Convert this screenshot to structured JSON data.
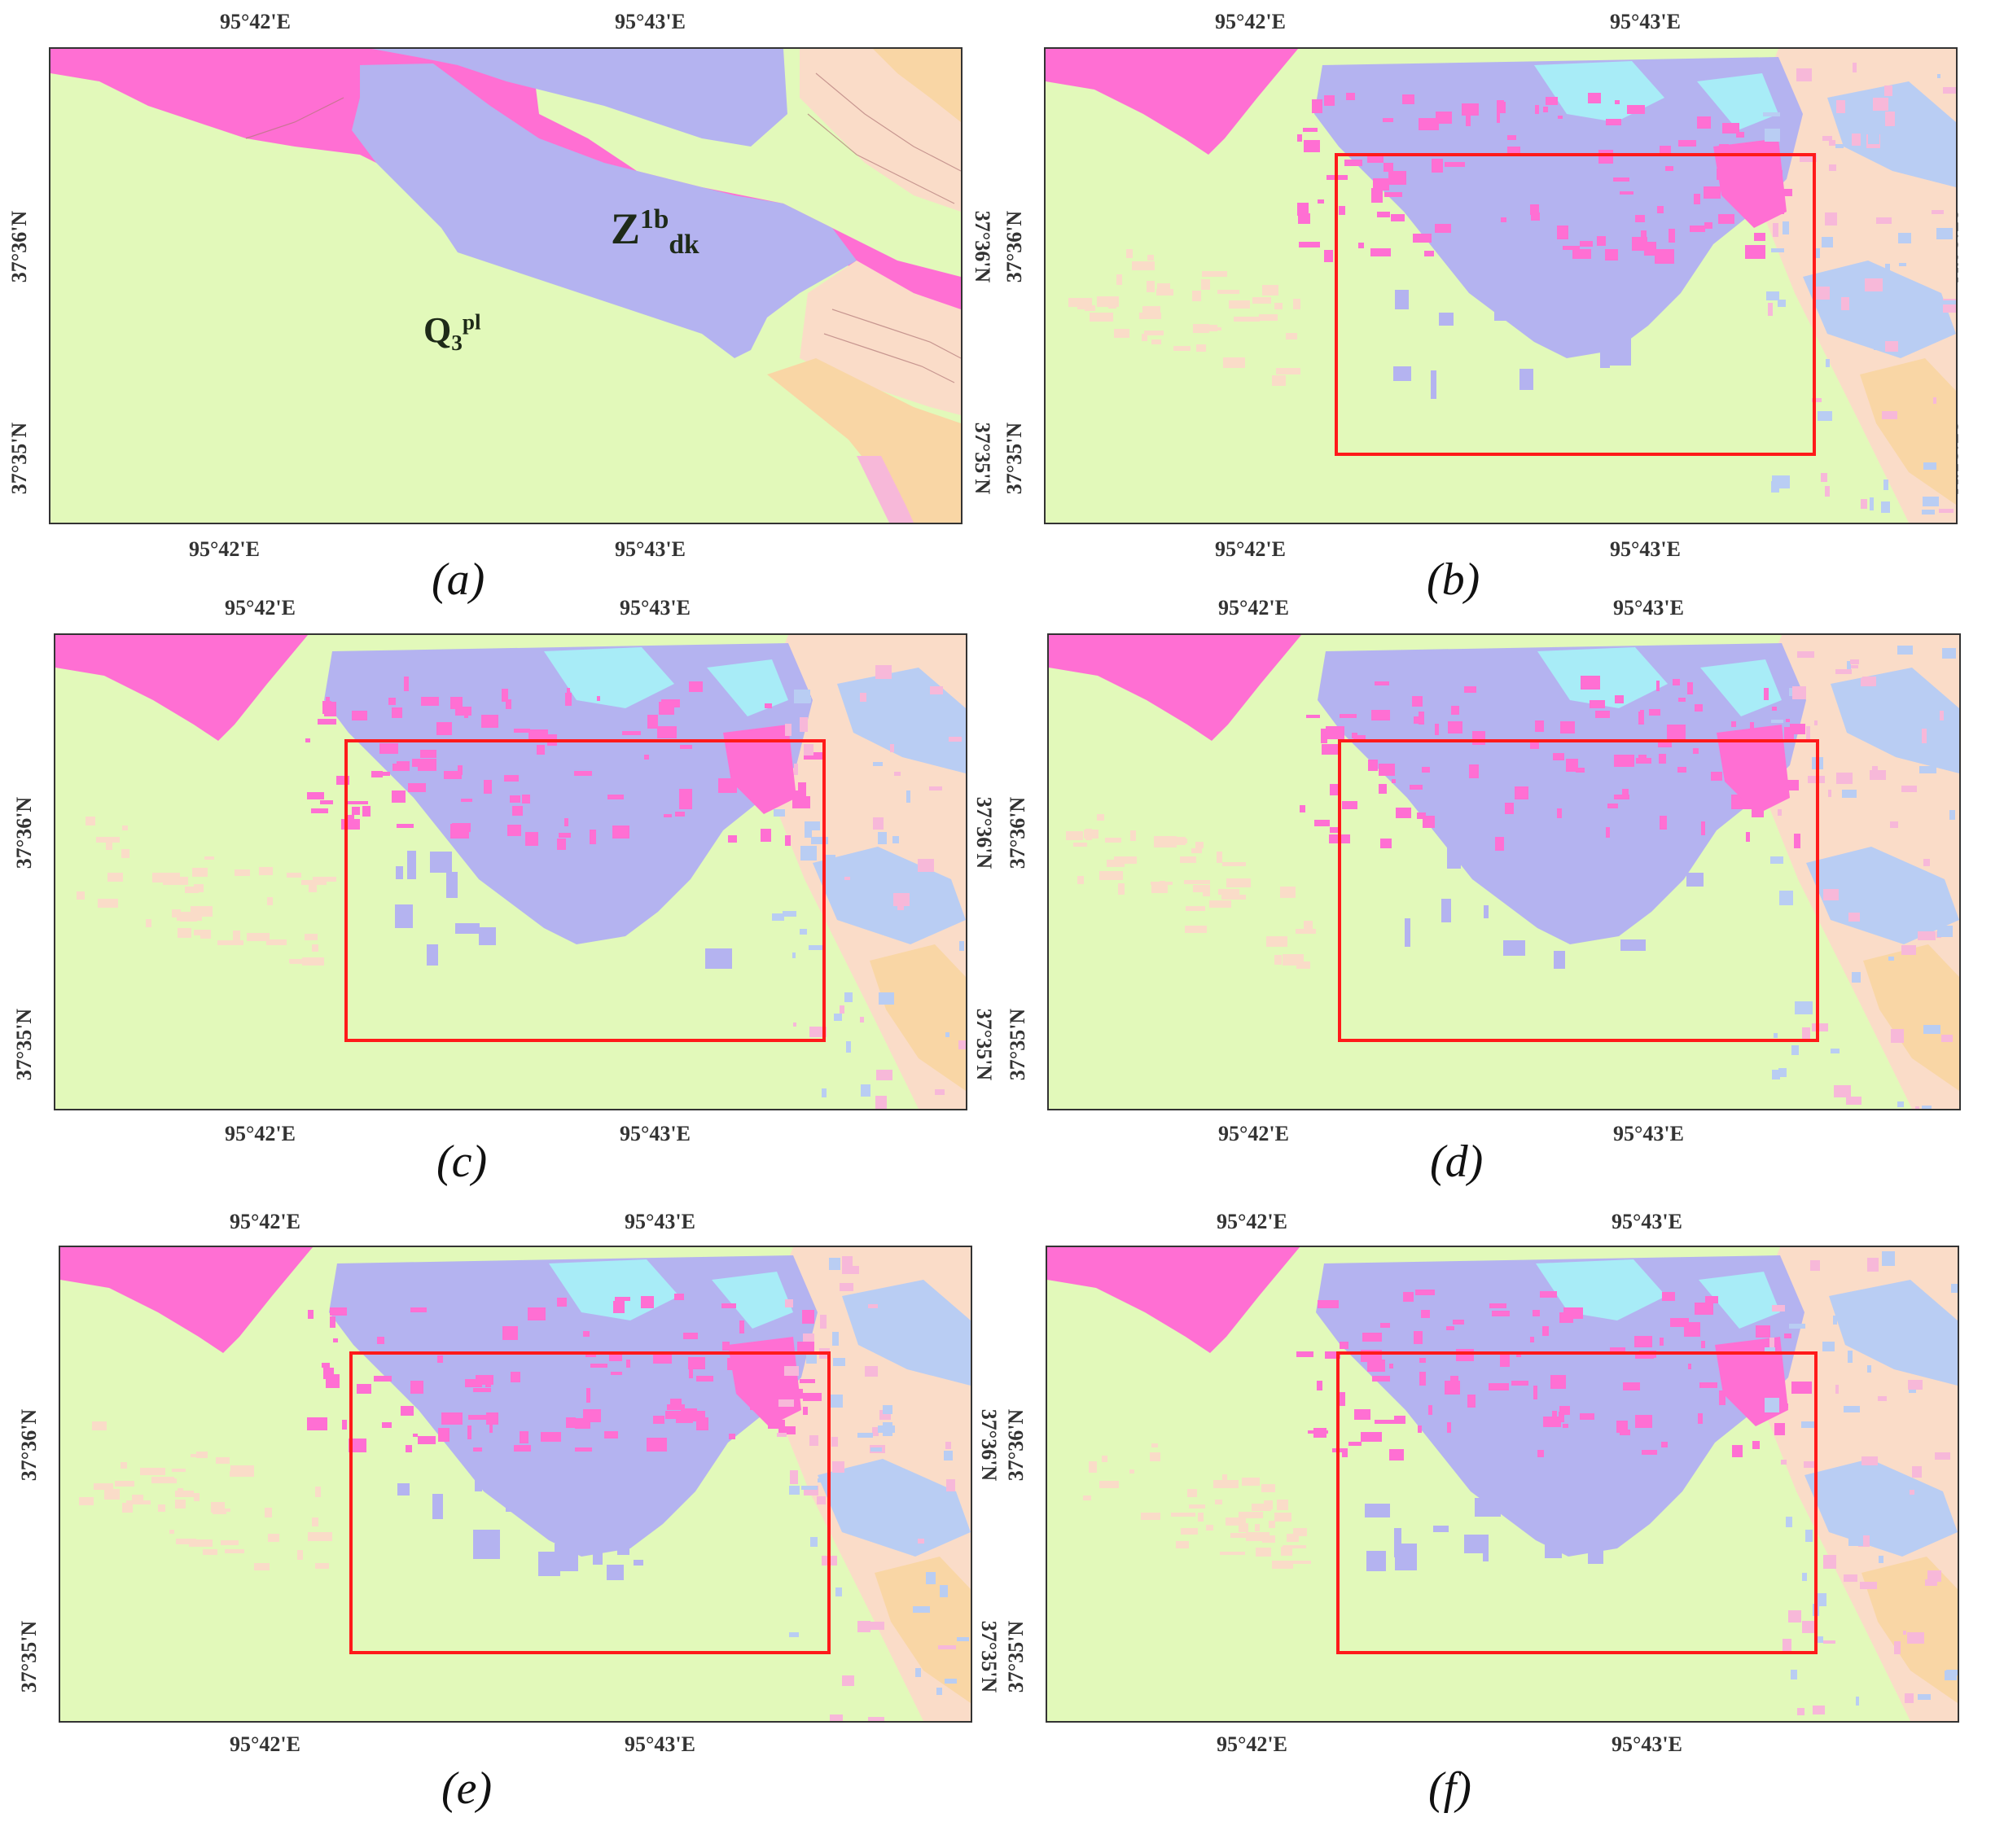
{
  "figure": {
    "colors": {
      "quaternary_green": "#e2f9ba",
      "sinian_lavender": "#b4b3f0",
      "magenta": "#ff6fd3",
      "cyan": "#a8ecf7",
      "peach": "#fadcc8",
      "orange_tan": "#f9d6a5",
      "light_pink": "#f7b8d9",
      "light_blue": "#b9cdf3",
      "validation_box": "#ff1a1a"
    },
    "panels": [
      {
        "id": "a",
        "caption": "(a)",
        "lon_ticks": [
          "95°42'E",
          "95°43'E"
        ],
        "lat_ticks": [
          "37°36'N",
          "37°35'N"
        ],
        "units": [
          {
            "base": "Z",
            "sup": "1b",
            "sub": "dk"
          },
          {
            "base": "Q",
            "sub": "3",
            "sup": "pl"
          }
        ]
      },
      {
        "id": "b",
        "caption": "(b)",
        "lon_ticks": [
          "95°42'E",
          "95°43'E"
        ],
        "lat_ticks": [
          "37°36'N",
          "37°35'N"
        ]
      },
      {
        "id": "c",
        "caption": "(c)",
        "lon_ticks": [
          "95°42'E",
          "95°43'E"
        ],
        "lat_ticks": [
          "37°36'N",
          "37°35'N"
        ]
      },
      {
        "id": "d",
        "caption": "(d)",
        "lon_ticks": [
          "95°42'E",
          "95°43'E"
        ],
        "lat_ticks": [
          "37°36'N",
          "37°35'N"
        ]
      },
      {
        "id": "e",
        "caption": "(e)",
        "lon_ticks": [
          "95°42'E",
          "95°43'E"
        ],
        "lat_ticks": [
          "37°36'N",
          "37°35'N"
        ]
      },
      {
        "id": "f",
        "caption": "(f)",
        "lon_ticks": [
          "95°42'E",
          "95°43'E"
        ],
        "lat_ticks": [
          "37°36'N",
          "37°35'N"
        ]
      }
    ]
  }
}
